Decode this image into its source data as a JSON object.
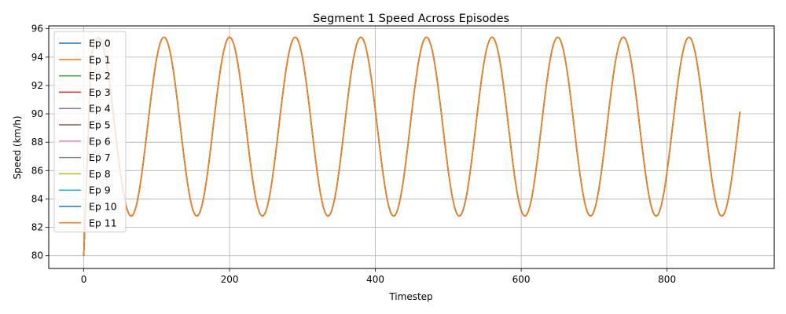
{
  "chart_data": {
    "type": "line",
    "title": "Segment 1 Speed Across Episodes",
    "xlabel": "Timestep",
    "ylabel": "Speed (km/h)",
    "xlim": [
      -48,
      947
    ],
    "ylim": [
      79.1,
      96.2
    ],
    "xticks": [
      0,
      200,
      400,
      600,
      800
    ],
    "yticks": [
      80,
      82,
      84,
      86,
      88,
      90,
      92,
      94,
      96
    ],
    "grid": true,
    "legend_position": "upper-left",
    "x_range": [
      0,
      900
    ],
    "signal": {
      "start": 80,
      "center": 89.1,
      "amplitude": 6.3,
      "period": 90,
      "first_peak": 10,
      "first_peak_value": 93.9
    },
    "series": [
      {
        "name": "Ep 0",
        "color": "#1f77b4"
      },
      {
        "name": "Ep 1",
        "color": "#ff7f0e"
      },
      {
        "name": "Ep 2",
        "color": "#2ca02c"
      },
      {
        "name": "Ep 3",
        "color": "#d62728"
      },
      {
        "name": "Ep 4",
        "color": "#9467bd"
      },
      {
        "name": "Ep 5",
        "color": "#8c564b"
      },
      {
        "name": "Ep 6",
        "color": "#e377c2"
      },
      {
        "name": "Ep 7",
        "color": "#7f7f7f"
      },
      {
        "name": "Ep 8",
        "color": "#bcbd22"
      },
      {
        "name": "Ep 9",
        "color": "#17becf"
      },
      {
        "name": "Ep 10",
        "color": "#1f77b4"
      },
      {
        "name": "Ep 11",
        "color": "#ff7f0e"
      }
    ]
  }
}
